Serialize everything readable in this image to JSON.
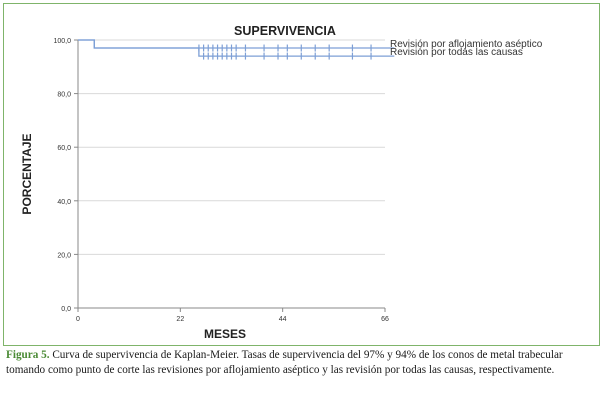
{
  "chart_data": {
    "type": "line",
    "title": "SUPERVIVENCIA",
    "xlabel": "MESES",
    "ylabel": "PORCENTAJE",
    "xlim": [
      0,
      66
    ],
    "ylim": [
      0,
      100
    ],
    "x_ticks": [
      0,
      22,
      44,
      66
    ],
    "x_tick_labels": [
      "0",
      "22",
      "44",
      "66"
    ],
    "y_ticks": [
      0,
      20,
      40,
      60,
      80,
      100
    ],
    "y_tick_labels": [
      "0,0",
      "20,0",
      "40,0",
      "60,0",
      "80,0",
      "100,0"
    ],
    "grid": "horizontal",
    "legend_position": "top-right",
    "series": [
      {
        "name": "Revisión por aflojamiento aséptico",
        "color": "#7d9fd6",
        "steps": [
          [
            0,
            100
          ],
          [
            3.5,
            100
          ],
          [
            3.5,
            97
          ],
          [
            68,
            97
          ]
        ],
        "censored_x": [
          26,
          27,
          28,
          29,
          30,
          31,
          32,
          33,
          34,
          36,
          40,
          43,
          45,
          48,
          51,
          54,
          59,
          63
        ]
      },
      {
        "name": "Revisión por todas las causas",
        "color": "#7d9fd6",
        "steps": [
          [
            0,
            100
          ],
          [
            3.5,
            100
          ],
          [
            3.5,
            97
          ],
          [
            26,
            97
          ],
          [
            26,
            94
          ],
          [
            68,
            94
          ]
        ],
        "censored_x": [
          27,
          28,
          29,
          30,
          31,
          32,
          33,
          34,
          36,
          40,
          43,
          45,
          48,
          51,
          54,
          59,
          63
        ]
      }
    ]
  },
  "caption": {
    "label": "Figura 5.",
    "text": " Curva de supervivencia de Kaplan-Meier. Tasas de supervivencia del 97% y 94% de los conos de metal trabecular tomando como punto de corte las revisiones por aflojamiento aséptico y las revisión por todas las causas, respectivamente."
  }
}
